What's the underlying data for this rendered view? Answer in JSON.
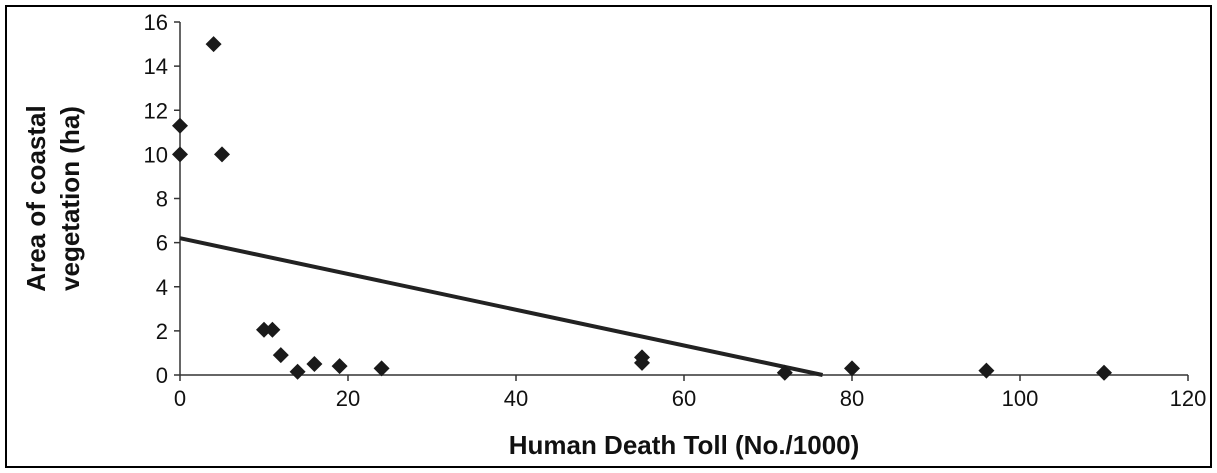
{
  "chart_data": {
    "type": "scatter",
    "title": "",
    "xlabel": "Human Death Toll (No./1000)",
    "ylabel_line1": "Area of coastal",
    "ylabel_line2": "vegetation (ha)",
    "xlim": [
      0,
      120
    ],
    "ylim": [
      0,
      16
    ],
    "xticks": [
      0,
      20,
      40,
      60,
      80,
      100,
      120
    ],
    "yticks": [
      0,
      2,
      4,
      6,
      8,
      10,
      12,
      14,
      16
    ],
    "grid": false,
    "legend": "none",
    "marker": "diamond",
    "marker_color": "#1a1a1a",
    "points": [
      {
        "x": 0,
        "y": 11.3
      },
      {
        "x": 0,
        "y": 10.0
      },
      {
        "x": 4,
        "y": 15.0
      },
      {
        "x": 5,
        "y": 10.0
      },
      {
        "x": 10,
        "y": 2.05
      },
      {
        "x": 11,
        "y": 2.05
      },
      {
        "x": 12,
        "y": 0.9
      },
      {
        "x": 14,
        "y": 0.15
      },
      {
        "x": 16,
        "y": 0.5
      },
      {
        "x": 19,
        "y": 0.4
      },
      {
        "x": 24,
        "y": 0.3
      },
      {
        "x": 55,
        "y": 0.8
      },
      {
        "x": 55,
        "y": 0.55
      },
      {
        "x": 72,
        "y": 0.1
      },
      {
        "x": 80,
        "y": 0.3
      },
      {
        "x": 96,
        "y": 0.2
      },
      {
        "x": 110,
        "y": 0.1
      }
    ],
    "trendline": {
      "x": [
        0,
        76.5
      ],
      "y": [
        6.2,
        0
      ]
    }
  }
}
